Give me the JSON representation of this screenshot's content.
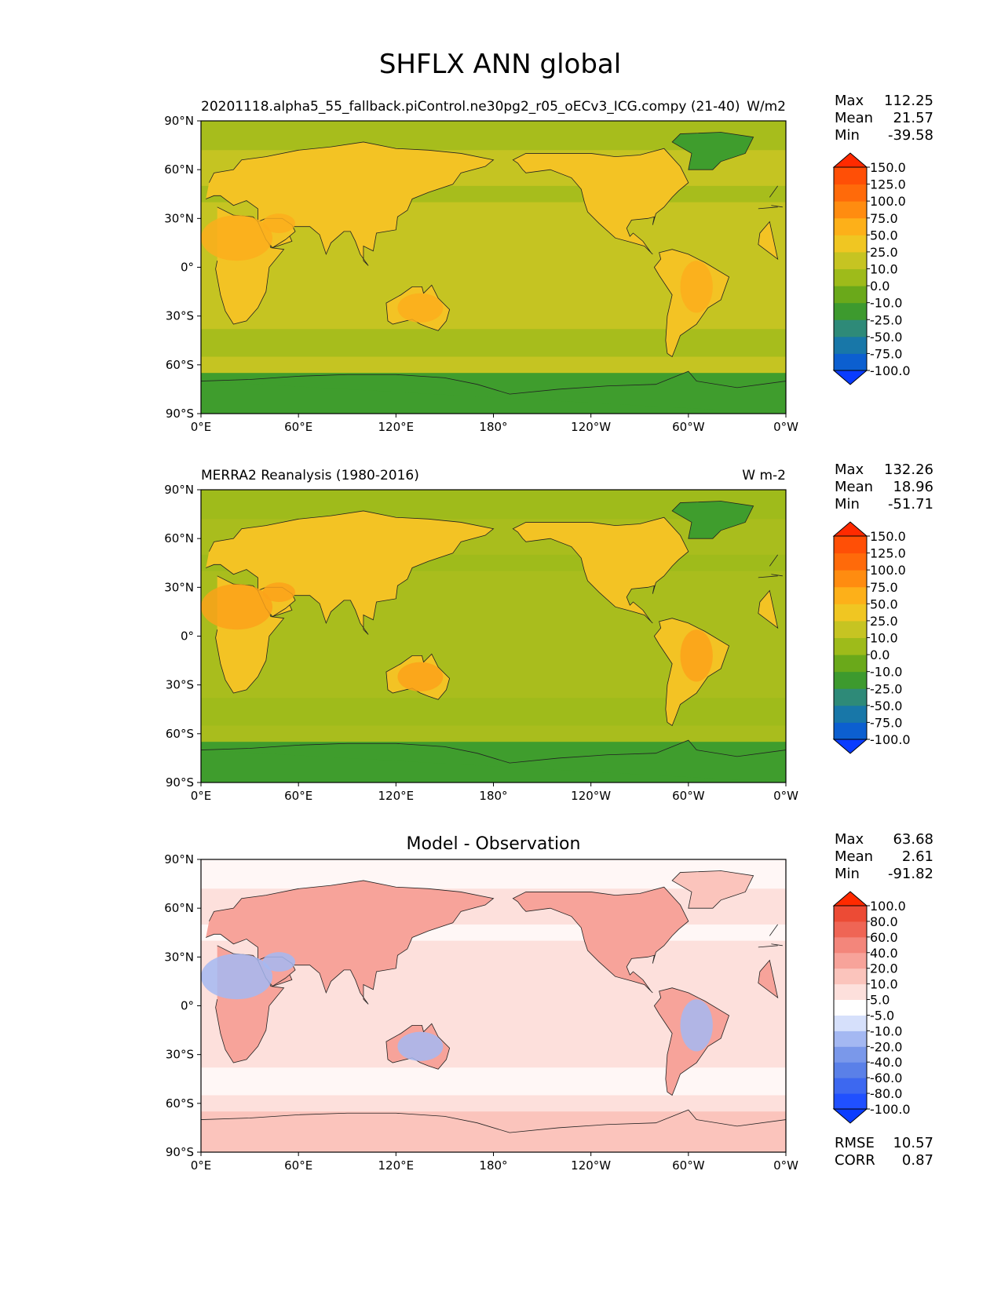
{
  "figure": {
    "title": "SHFLX ANN global"
  },
  "chart_data": [
    {
      "type": "heatmap",
      "panel": "test",
      "title_left": "20201118.alpha5_55_fallback.piControl.ne30pg2_r05_oECv3_ICG.compy (21-40)",
      "title_right": "W/m2",
      "title_center": "",
      "stats": {
        "max_label": "Max",
        "max": "112.25",
        "mean_label": "Mean",
        "mean": "21.57",
        "min_label": "Min",
        "min": "-39.58"
      },
      "colorbar": {
        "levels": [
          "-100.0",
          "-75.0",
          "-50.0",
          "-25.0",
          "-10.0",
          "0.0",
          "10.0",
          "25.0",
          "50.0",
          "75.0",
          "100.0",
          "125.0",
          "150.0"
        ],
        "colors": [
          "#0a3cff",
          "#0c5fd0",
          "#1877a8",
          "#2e8a78",
          "#3d9a2e",
          "#6aa91a",
          "#9ebb1a",
          "#c6c422",
          "#f0c622",
          "#fdb019",
          "#ff8c10",
          "#ff6a0a",
          "#ff4f06",
          "#ff2a00"
        ]
      },
      "lon_ticks": [
        "0°E",
        "60°E",
        "120°E",
        "180°",
        "120°W",
        "60°W",
        "0°W"
      ],
      "lat_ticks": [
        "90°N",
        "60°N",
        "30°N",
        "0°",
        "30°S",
        "60°S",
        "90°S"
      ],
      "field_colors": {
        "ocean": "#c5c422",
        "land": "#f3c324",
        "hot": "#fcae1c",
        "polar": "#3f9d2d",
        "subpolar": "#9cbb1b"
      }
    },
    {
      "type": "heatmap",
      "panel": "reference",
      "title_left": "MERRA2 Reanalysis (1980-2016)",
      "title_right": "W m-2",
      "title_center": "",
      "stats": {
        "max_label": "Max",
        "max": "132.26",
        "mean_label": "Mean",
        "mean": "18.96",
        "min_label": "Min",
        "min": "-51.71"
      },
      "colorbar": {
        "levels": [
          "-100.0",
          "-75.0",
          "-50.0",
          "-25.0",
          "-10.0",
          "0.0",
          "10.0",
          "25.0",
          "50.0",
          "75.0",
          "100.0",
          "125.0",
          "150.0"
        ],
        "colors": [
          "#0a3cff",
          "#0c5fd0",
          "#1877a8",
          "#2e8a78",
          "#3d9a2e",
          "#6aa91a",
          "#9ebb1a",
          "#c6c422",
          "#f0c622",
          "#fdb019",
          "#ff8c10",
          "#ff6a0a",
          "#ff4f06",
          "#ff2a00"
        ]
      },
      "lon_ticks": [
        "0°E",
        "60°E",
        "120°E",
        "180°",
        "120°W",
        "60°W",
        "0°W"
      ],
      "lat_ticks": [
        "90°N",
        "60°N",
        "30°N",
        "0°",
        "30°S",
        "60°S",
        "90°S"
      ],
      "field_colors": {
        "ocean": "#a9bd1d",
        "land": "#f3c324",
        "hot": "#fca21a",
        "polar": "#3f9d2d",
        "subpolar": "#9cbb1b"
      }
    },
    {
      "type": "heatmap",
      "panel": "difference",
      "title_left": "",
      "title_right": "",
      "title_center": "Model - Observation",
      "stats": {
        "max_label": "Max",
        "max": "63.68",
        "mean_label": "Mean",
        "mean": "2.61",
        "min_label": "Min",
        "min": "-91.82"
      },
      "colorbar": {
        "levels": [
          "-100.0",
          "-80.0",
          "-60.0",
          "-40.0",
          "-20.0",
          "-10.0",
          "-5.0",
          "5.0",
          "10.0",
          "20.0",
          "40.0",
          "60.0",
          "80.0",
          "100.0"
        ],
        "colors": [
          "#0a3cff",
          "#2050ff",
          "#3d68f0",
          "#5a80e8",
          "#7a98ea",
          "#a4b8f2",
          "#d6e0fb",
          "#ffffff",
          "#fde0dc",
          "#fbc4bc",
          "#f7a39a",
          "#f3867b",
          "#ef6555",
          "#ec4b35",
          "#ff2a00"
        ]
      },
      "lon_ticks": [
        "0°E",
        "60°E",
        "120°E",
        "180°",
        "120°W",
        "60°W",
        "0°W"
      ],
      "lat_ticks": [
        "90°N",
        "60°N",
        "30°N",
        "0°",
        "30°S",
        "60°S",
        "90°S"
      ],
      "field_colors": {
        "ocean": "#fde0dc",
        "land": "#f7a39a",
        "hot": "#a4b8f2",
        "polar": "#fbc4bc",
        "subpolar": "#ffffff"
      },
      "extra_stats": {
        "rmse_label": "RMSE",
        "rmse": "10.57",
        "corr_label": "CORR",
        "corr": "0.87"
      }
    }
  ]
}
